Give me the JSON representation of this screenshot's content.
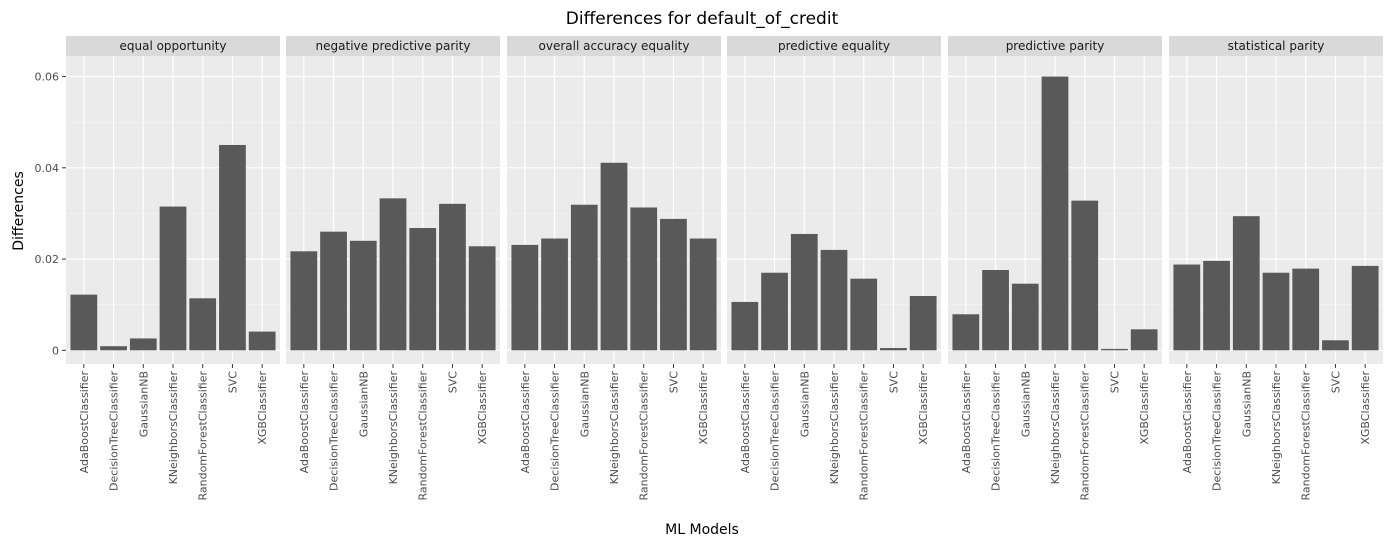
{
  "chart_data": {
    "type": "bar",
    "title": "Differences for default_of_credit",
    "xlabel": "ML Models",
    "ylabel": "Differences",
    "ylim": [
      -0.003,
      0.0645
    ],
    "yticks": [
      0,
      0.02,
      0.04,
      0.06
    ],
    "ytick_labels": [
      "0",
      "0.02",
      "0.04",
      "0.06"
    ],
    "grid": true,
    "legend": "none",
    "bar_color": "#595959",
    "panel_bg": "#ebebeb",
    "strip_bg": "#d9d9d9",
    "categories": [
      "AdaBoostClassifier",
      "DecisionTreeClassifier",
      "GaussianNB",
      "KNeighborsClassifier",
      "RandomForestClassifier",
      "SVC",
      "XGBClassifier"
    ],
    "facets": [
      {
        "name": "equal opportunity",
        "values": [
          0.0122,
          0.0009,
          0.0026,
          0.0315,
          0.0114,
          0.045,
          0.0041
        ]
      },
      {
        "name": "negative predictive parity",
        "values": [
          0.0217,
          0.026,
          0.024,
          0.0333,
          0.0268,
          0.0321,
          0.0228
        ]
      },
      {
        "name": "overall accuracy equality",
        "values": [
          0.0231,
          0.0245,
          0.0319,
          0.0411,
          0.0313,
          0.0288,
          0.0245
        ]
      },
      {
        "name": "predictive equality",
        "values": [
          0.0106,
          0.017,
          0.0255,
          0.022,
          0.0157,
          0.0005,
          0.0119
        ]
      },
      {
        "name": "predictive parity",
        "values": [
          0.0079,
          0.0176,
          0.0146,
          0.06,
          0.0328,
          0.0003,
          0.0046
        ]
      },
      {
        "name": "statistical parity",
        "values": [
          0.0188,
          0.0196,
          0.0294,
          0.017,
          0.0179,
          0.0022,
          0.0185
        ]
      }
    ]
  }
}
